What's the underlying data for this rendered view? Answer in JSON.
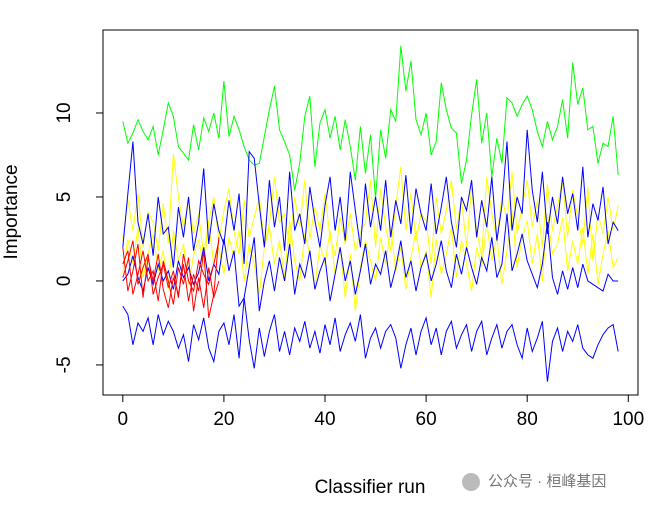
{
  "chart_data": {
    "type": "line",
    "xlabel": "Classifier run",
    "ylabel": "Importance",
    "watermark": "公众号 · 桓峰基因",
    "xlim": [
      -3.92,
      101.92
    ],
    "ylim": [
      -6.79,
      14.94
    ],
    "xticks": [
      0,
      20,
      40,
      60,
      80,
      100
    ],
    "yticks": [
      -5,
      0,
      5,
      10
    ],
    "x": [
      0,
      1,
      2,
      3,
      4,
      5,
      6,
      7,
      8,
      9,
      10,
      11,
      12,
      13,
      14,
      15,
      16,
      17,
      18,
      19,
      20,
      21,
      22,
      23,
      24,
      25,
      26,
      27,
      28,
      29,
      30,
      31,
      32,
      33,
      34,
      35,
      36,
      37,
      38,
      39,
      40,
      41,
      42,
      43,
      44,
      45,
      46,
      47,
      48,
      49,
      50,
      51,
      52,
      53,
      54,
      55,
      56,
      57,
      58,
      59,
      60,
      61,
      62,
      63,
      64,
      65,
      66,
      67,
      68,
      69,
      70,
      71,
      72,
      73,
      74,
      75,
      76,
      77,
      78,
      79,
      80,
      81,
      82,
      83,
      84,
      85,
      86,
      87,
      88,
      89,
      90,
      91,
      92,
      93,
      94,
      95,
      96,
      97,
      98
    ],
    "series": [
      {
        "color": "#00ff00",
        "values": [
          9.5,
          8.2,
          8.8,
          9.6,
          8.9,
          8.4,
          9.2,
          7.5,
          9.0,
          10.6,
          9.8,
          8.0,
          7.6,
          7.2,
          9.3,
          7.8,
          9.7,
          8.9,
          10.0,
          8.5,
          11.9,
          8.6,
          9.8,
          9.0,
          8.0,
          7.2,
          6.9,
          7.0,
          8.6,
          10.2,
          11.6,
          9.0,
          8.3,
          7.5,
          5.4,
          7.0,
          9.8,
          11.0,
          6.8,
          9.4,
          10.2,
          8.5,
          9.8,
          7.8,
          9.6,
          8.0,
          6.0,
          9.2,
          6.4,
          8.7,
          4.9,
          9.0,
          7.3,
          10.2,
          9.5,
          14.0,
          11.3,
          13.1,
          9.6,
          8.7,
          10.0,
          7.5,
          8.3,
          11.8,
          10.2,
          9.1,
          8.8,
          5.8,
          7.2,
          9.9,
          12.0,
          8.2,
          10.0,
          6.2,
          8.5,
          7.0,
          10.9,
          10.6,
          9.8,
          10.5,
          11.0,
          10.2,
          8.9,
          8.0,
          9.5,
          8.4,
          9.2,
          10.8,
          8.5,
          13.0,
          10.5,
          11.5,
          9.0,
          9.2,
          7.0,
          8.2,
          8.0,
          9.8,
          6.3
        ]
      },
      {
        "color": "#ffff00",
        "values": [
          2.5,
          4.8,
          3.0,
          5.2,
          2.0,
          4.1,
          3.5,
          1.8,
          4.6,
          2.2,
          7.6,
          5.0,
          3.2,
          4.9,
          2.8,
          4.0,
          1.5,
          3.6,
          5.0,
          2.4,
          4.2,
          5.5,
          3.0,
          1.6,
          4.8,
          2.6,
          3.8,
          5.0,
          2.2,
          3.4,
          6.2,
          3.5,
          4.0,
          2.0,
          5.0,
          3.2,
          6.0,
          2.5,
          4.4,
          3.0,
          5.2,
          2.6,
          1.5,
          3.8,
          2.2,
          4.0,
          1.8,
          2.9,
          3.5,
          6.0,
          2.0,
          5.5,
          3.2,
          1.8,
          4.5,
          6.8,
          3.0,
          5.2,
          2.4,
          4.0,
          3.6,
          1.0,
          5.0,
          2.8,
          4.2,
          6.0,
          3.1,
          4.9,
          2.0,
          5.6,
          3.0,
          1.5,
          6.2,
          4.0,
          2.5,
          5.0,
          3.6,
          6.5,
          2.8,
          4.4,
          6.0,
          3.2,
          4.8,
          2.0,
          5.8,
          3.0,
          4.5,
          6.0,
          2.6,
          5.4,
          3.8,
          2.2,
          5.6,
          1.2,
          4.0,
          2.8,
          5.0,
          3.0,
          4.5
        ]
      },
      {
        "color": "#ffff00",
        "values": [
          0.5,
          2.5,
          1.0,
          3.2,
          0.2,
          1.6,
          2.8,
          0.6,
          1.8,
          -0.5,
          3.0,
          1.2,
          2.2,
          -0.2,
          1.5,
          2.5,
          0.8,
          3.4,
          1.0,
          2.0,
          0.4,
          2.6,
          1.4,
          3.0,
          0.0,
          2.2,
          1.0,
          -0.8,
          2.0,
          3.2,
          1.0,
          2.4,
          0.2,
          3.6,
          1.2,
          0.0,
          2.8,
          1.6,
          -0.4,
          2.2,
          1.0,
          3.0,
          0.4,
          2.0,
          -1.0,
          1.6,
          -1.8,
          0.8,
          2.4,
          1.2,
          0.0,
          2.6,
          1.0,
          3.2,
          0.6,
          2.0,
          -0.5,
          1.4,
          3.0,
          0.8,
          1.8,
          -1.0,
          2.5,
          0.4,
          1.6,
          3.2,
          0.2,
          2.4,
          1.0,
          -0.6,
          2.0,
          0.8,
          3.5,
          1.2,
          2.6,
          -0.2,
          1.8,
          4.2,
          0.8,
          2.6,
          3.6,
          1.0,
          2.8,
          0.0,
          4.0,
          1.6,
          2.2,
          3.8,
          0.6,
          2.4,
          1.0,
          3.2,
          0.4,
          2.8,
          -0.2,
          1.6,
          3.0,
          0.8,
          1.4
        ]
      },
      {
        "color": "#0000ff",
        "values": [
          2.0,
          5.2,
          8.3,
          3.5,
          2.2,
          4.0,
          1.5,
          5.0,
          2.8,
          3.2,
          0.8,
          4.4,
          2.6,
          5.0,
          1.8,
          3.5,
          6.7,
          2.2,
          4.6,
          3.0,
          2.2,
          4.8,
          3.0,
          5.2,
          1.0,
          7.7,
          7.3,
          4.5,
          2.0,
          6.0,
          3.2,
          5.0,
          1.8,
          6.5,
          3.0,
          4.0,
          2.2,
          5.6,
          3.6,
          2.0,
          4.5,
          6.2,
          3.0,
          5.0,
          2.4,
          6.5,
          4.2,
          2.0,
          5.8,
          3.2,
          5.0,
          3.0,
          6.0,
          2.6,
          4.8,
          3.4,
          6.3,
          2.8,
          5.5,
          4.0,
          3.0,
          5.8,
          2.8,
          4.4,
          6.2,
          3.5,
          2.0,
          5.0,
          4.2,
          6.0,
          2.6,
          4.8,
          3.2,
          6.2,
          2.4,
          4.5,
          8.3,
          3.0,
          5.0,
          4.0,
          9.0,
          5.4,
          3.5,
          6.5,
          2.8,
          5.0,
          3.4,
          6.2,
          4.0,
          5.2,
          3.0,
          6.8,
          2.6,
          4.6,
          3.6,
          5.6,
          2.2,
          3.5,
          3.0
        ]
      },
      {
        "color": "#0000ff",
        "values": [
          0.0,
          0.4,
          1.5,
          0.2,
          -0.6,
          0.8,
          -0.2,
          1.0,
          0.0,
          0.6,
          -0.5,
          1.2,
          0.2,
          0.8,
          -0.2,
          0.5,
          2.0,
          0.0,
          1.0,
          0.4,
          2.5,
          0.6,
          1.8,
          -1.5,
          -1.0,
          0.8,
          2.6,
          -1.8,
          0.0,
          1.2,
          -0.6,
          1.4,
          0.0,
          2.2,
          -0.8,
          1.0,
          0.2,
          1.8,
          -0.5,
          0.6,
          1.4,
          -1.2,
          0.4,
          2.0,
          0.0,
          1.2,
          -0.8,
          0.6,
          2.2,
          -0.2,
          1.0,
          0.4,
          1.8,
          -0.4,
          0.8,
          2.4,
          0.2,
          1.2,
          -0.6,
          0.8,
          1.6,
          0.0,
          1.0,
          2.4,
          0.6,
          -0.4,
          1.6,
          0.4,
          2.0,
          0.8,
          -0.2,
          1.4,
          0.6,
          2.6,
          0.2,
          1.0,
          4.0,
          0.6,
          1.6,
          2.8,
          1.2,
          0.4,
          -0.4,
          1.0,
          3.5,
          0.2,
          -0.8,
          0.6,
          -0.5,
          0.8,
          -0.4,
          1.0,
          0.0,
          -0.2,
          -0.4,
          -0.6,
          0.4,
          0.0,
          0.0
        ]
      },
      {
        "color": "#0000ff",
        "values": [
          -1.5,
          -2.0,
          -3.8,
          -2.5,
          -3.0,
          -2.2,
          -3.8,
          -2.0,
          -3.2,
          -2.4,
          -3.0,
          -4.0,
          -3.2,
          -4.8,
          -2.6,
          -3.5,
          -2.2,
          -4.0,
          -4.8,
          -3.0,
          -2.5,
          -3.8,
          -2.0,
          -4.6,
          -1.0,
          -3.5,
          -5.2,
          -2.8,
          -4.5,
          -3.0,
          -2.0,
          -4.2,
          -3.0,
          -4.4,
          -2.8,
          -3.6,
          -2.4,
          -4.0,
          -3.0,
          -4.3,
          -2.6,
          -3.8,
          -2.2,
          -4.2,
          -3.2,
          -2.5,
          -3.6,
          -2.0,
          -4.6,
          -3.4,
          -2.8,
          -4.0,
          -3.0,
          -2.6,
          -3.4,
          -5.2,
          -3.8,
          -2.8,
          -4.4,
          -3.0,
          -2.2,
          -3.8,
          -2.8,
          -4.4,
          -3.0,
          -2.4,
          -4.0,
          -3.2,
          -2.6,
          -4.2,
          -3.0,
          -2.4,
          -4.4,
          -3.4,
          -2.6,
          -4.0,
          -3.0,
          -2.6,
          -3.8,
          -4.6,
          -2.8,
          -4.2,
          -3.4,
          -2.4,
          -6.0,
          -3.6,
          -2.8,
          -4.2,
          -3.0,
          -3.6,
          -2.6,
          -4.0,
          -4.4,
          -4.6,
          -3.8,
          -3.2,
          -2.8,
          -2.6,
          -4.2
        ]
      },
      {
        "color": "#ff0000",
        "x": [
          0,
          1,
          2,
          3,
          4,
          5,
          6,
          7,
          8,
          9,
          10,
          11,
          12,
          13,
          14,
          15,
          16,
          17,
          18,
          19
        ],
        "values": [
          2.0,
          -0.6,
          0.6,
          2.2,
          -1.0,
          1.4,
          0.0,
          1.6,
          -0.5,
          -1.6,
          0.2,
          -0.8,
          1.0,
          -1.2,
          0.4,
          -0.6,
          1.8,
          -2.2,
          -0.8,
          2.6
        ]
      },
      {
        "color": "#ff0000",
        "x": [
          0,
          1,
          2,
          3,
          4,
          5,
          6,
          7,
          8,
          9,
          10,
          11,
          12,
          13,
          14,
          15,
          16,
          17,
          18,
          19
        ],
        "values": [
          1.0,
          1.8,
          -0.8,
          0.4,
          1.8,
          0.0,
          0.6,
          -1.2,
          1.2,
          0.0,
          -1.4,
          0.8,
          -0.2,
          1.4,
          -1.8,
          0.2,
          -1.6,
          0.8,
          -1.0,
          0.0
        ]
      },
      {
        "color": "#ff0000",
        "x": [
          0,
          1,
          2,
          3,
          4,
          5,
          6,
          7,
          8,
          9,
          10,
          11,
          12,
          13,
          14,
          15,
          16,
          17,
          18,
          19
        ],
        "values": [
          0.2,
          1.2,
          2.4,
          -0.2,
          0.8,
          1.6,
          -0.8,
          0.2,
          1.0,
          -0.4,
          0.6,
          -1.0,
          1.6,
          0.0,
          -0.6,
          1.2,
          0.4,
          -0.2,
          1.0,
          2.4
        ]
      }
    ]
  }
}
